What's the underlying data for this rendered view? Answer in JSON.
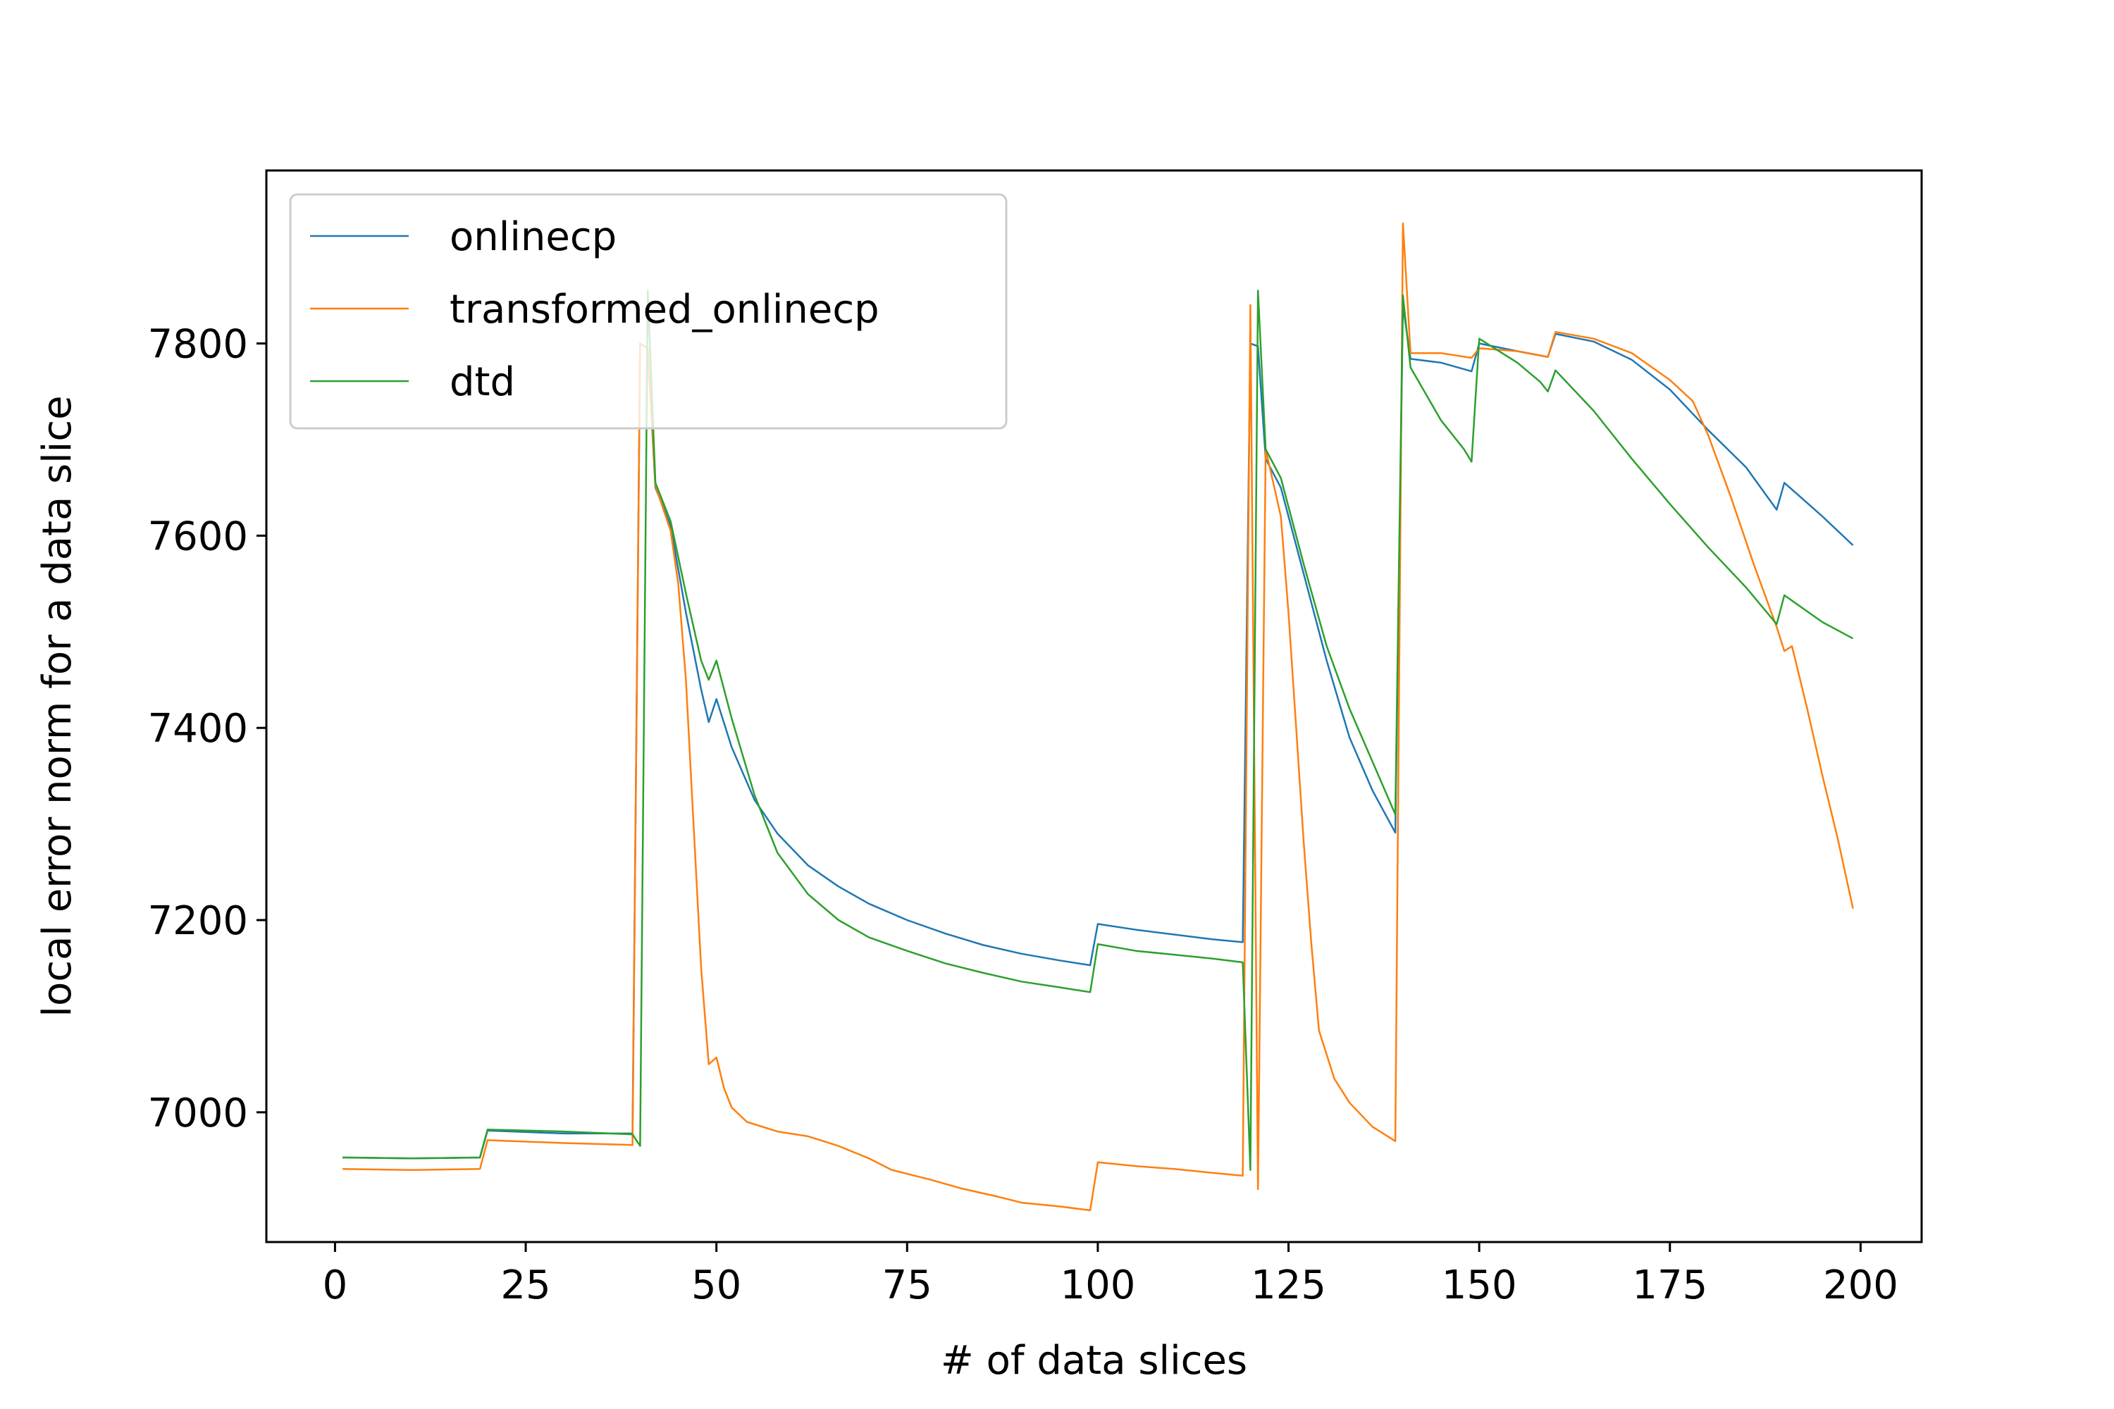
{
  "chart_data": {
    "type": "line",
    "title": "",
    "xlabel": "# of data slices",
    "ylabel": "local error norm for a data slice",
    "xlim": [
      -9,
      208
    ],
    "ylim": [
      6865,
      7980
    ],
    "xticks": [
      0,
      25,
      50,
      75,
      100,
      125,
      150,
      175,
      200
    ],
    "yticks": [
      7000,
      7200,
      7400,
      7600,
      7800
    ],
    "grid": false,
    "legend_position": "upper-left",
    "series": [
      {
        "name": "onlinecp",
        "color": "#1f77b4",
        "points": [
          [
            1,
            6953
          ],
          [
            10,
            6952
          ],
          [
            19,
            6953
          ],
          [
            20,
            6981
          ],
          [
            30,
            6978
          ],
          [
            39,
            6978
          ],
          [
            40,
            7800
          ],
          [
            41,
            7795
          ],
          [
            42,
            7650
          ],
          [
            44,
            7610
          ],
          [
            46,
            7520
          ],
          [
            48,
            7440
          ],
          [
            49,
            7406
          ],
          [
            50,
            7430
          ],
          [
            52,
            7380
          ],
          [
            55,
            7325
          ],
          [
            58,
            7290
          ],
          [
            62,
            7257
          ],
          [
            66,
            7235
          ],
          [
            70,
            7217
          ],
          [
            75,
            7200
          ],
          [
            80,
            7186
          ],
          [
            85,
            7174
          ],
          [
            90,
            7165
          ],
          [
            95,
            7158
          ],
          [
            99,
            7153
          ],
          [
            100,
            7196
          ],
          [
            105,
            7190
          ],
          [
            110,
            7185
          ],
          [
            115,
            7180
          ],
          [
            119,
            7177
          ],
          [
            120,
            7800
          ],
          [
            121,
            7797
          ],
          [
            122,
            7680
          ],
          [
            124,
            7650
          ],
          [
            127,
            7560
          ],
          [
            130,
            7470
          ],
          [
            133,
            7390
          ],
          [
            136,
            7335
          ],
          [
            139,
            7291
          ],
          [
            140,
            7840
          ],
          [
            141,
            7784
          ],
          [
            145,
            7780
          ],
          [
            149,
            7771
          ],
          [
            150,
            7800
          ],
          [
            155,
            7792
          ],
          [
            159,
            7786
          ],
          [
            160,
            7810
          ],
          [
            165,
            7802
          ],
          [
            170,
            7783
          ],
          [
            175,
            7752
          ],
          [
            180,
            7710
          ],
          [
            185,
            7671
          ],
          [
            189,
            7627
          ],
          [
            190,
            7655
          ],
          [
            195,
            7620
          ],
          [
            199,
            7590
          ]
        ]
      },
      {
        "name": "transformed_onlinecp",
        "color": "#ff7f0e",
        "points": [
          [
            1,
            6941
          ],
          [
            10,
            6940
          ],
          [
            19,
            6941
          ],
          [
            20,
            6971
          ],
          [
            30,
            6968
          ],
          [
            39,
            6966
          ],
          [
            40,
            7800
          ],
          [
            41,
            7795
          ],
          [
            42,
            7652
          ],
          [
            44,
            7605
          ],
          [
            45,
            7550
          ],
          [
            46,
            7450
          ],
          [
            47,
            7300
          ],
          [
            48,
            7150
          ],
          [
            49,
            7050
          ],
          [
            50,
            7057
          ],
          [
            51,
            7025
          ],
          [
            52,
            7005
          ],
          [
            54,
            6990
          ],
          [
            58,
            6980
          ],
          [
            62,
            6975
          ],
          [
            66,
            6965
          ],
          [
            70,
            6952
          ],
          [
            73,
            6940
          ],
          [
            78,
            6930
          ],
          [
            82,
            6921
          ],
          [
            87,
            6912
          ],
          [
            90,
            6906
          ],
          [
            95,
            6902
          ],
          [
            99,
            6898
          ],
          [
            100,
            6948
          ],
          [
            105,
            6944
          ],
          [
            110,
            6941
          ],
          [
            115,
            6937
          ],
          [
            119,
            6934
          ],
          [
            120,
            7840
          ],
          [
            121,
            6920
          ],
          [
            122,
            7690
          ],
          [
            124,
            7620
          ],
          [
            125,
            7520
          ],
          [
            126,
            7400
          ],
          [
            127,
            7280
          ],
          [
            128,
            7175
          ],
          [
            129,
            7085
          ],
          [
            130,
            7060
          ],
          [
            131,
            7035
          ],
          [
            133,
            7010
          ],
          [
            136,
            6985
          ],
          [
            139,
            6970
          ],
          [
            140,
            7925
          ],
          [
            141,
            7790
          ],
          [
            145,
            7790
          ],
          [
            149,
            7785
          ],
          [
            150,
            7795
          ],
          [
            155,
            7792
          ],
          [
            159,
            7786
          ],
          [
            160,
            7812
          ],
          [
            165,
            7805
          ],
          [
            170,
            7790
          ],
          [
            175,
            7762
          ],
          [
            178,
            7740
          ],
          [
            180,
            7705
          ],
          [
            183,
            7640
          ],
          [
            186,
            7570
          ],
          [
            189,
            7505
          ],
          [
            190,
            7480
          ],
          [
            191,
            7485
          ],
          [
            193,
            7420
          ],
          [
            195,
            7350
          ],
          [
            197,
            7285
          ],
          [
            199,
            7212
          ]
        ]
      },
      {
        "name": "dtd",
        "color": "#2ca02c",
        "points": [
          [
            1,
            6953
          ],
          [
            10,
            6952
          ],
          [
            19,
            6953
          ],
          [
            20,
            6982
          ],
          [
            30,
            6980
          ],
          [
            39,
            6977
          ],
          [
            40,
            6965
          ],
          [
            41,
            7855
          ],
          [
            42,
            7655
          ],
          [
            44,
            7615
          ],
          [
            46,
            7540
          ],
          [
            48,
            7470
          ],
          [
            49,
            7450
          ],
          [
            50,
            7470
          ],
          [
            52,
            7410
          ],
          [
            55,
            7330
          ],
          [
            58,
            7270
          ],
          [
            62,
            7227
          ],
          [
            66,
            7200
          ],
          [
            70,
            7182
          ],
          [
            75,
            7168
          ],
          [
            80,
            7155
          ],
          [
            85,
            7145
          ],
          [
            90,
            7136
          ],
          [
            95,
            7130
          ],
          [
            99,
            7125
          ],
          [
            100,
            7175
          ],
          [
            105,
            7168
          ],
          [
            110,
            7164
          ],
          [
            115,
            7160
          ],
          [
            119,
            7156
          ],
          [
            120,
            6940
          ],
          [
            121,
            7855
          ],
          [
            122,
            7690
          ],
          [
            124,
            7660
          ],
          [
            127,
            7570
          ],
          [
            130,
            7485
          ],
          [
            133,
            7420
          ],
          [
            136,
            7365
          ],
          [
            139,
            7310
          ],
          [
            140,
            7850
          ],
          [
            141,
            7775
          ],
          [
            145,
            7720
          ],
          [
            148,
            7690
          ],
          [
            149,
            7677
          ],
          [
            150,
            7805
          ],
          [
            155,
            7780
          ],
          [
            158,
            7760
          ],
          [
            159,
            7750
          ],
          [
            160,
            7772
          ],
          [
            165,
            7730
          ],
          [
            170,
            7680
          ],
          [
            175,
            7633
          ],
          [
            180,
            7588
          ],
          [
            185,
            7546
          ],
          [
            189,
            7508
          ],
          [
            190,
            7538
          ],
          [
            195,
            7510
          ],
          [
            199,
            7493
          ]
        ]
      }
    ]
  }
}
